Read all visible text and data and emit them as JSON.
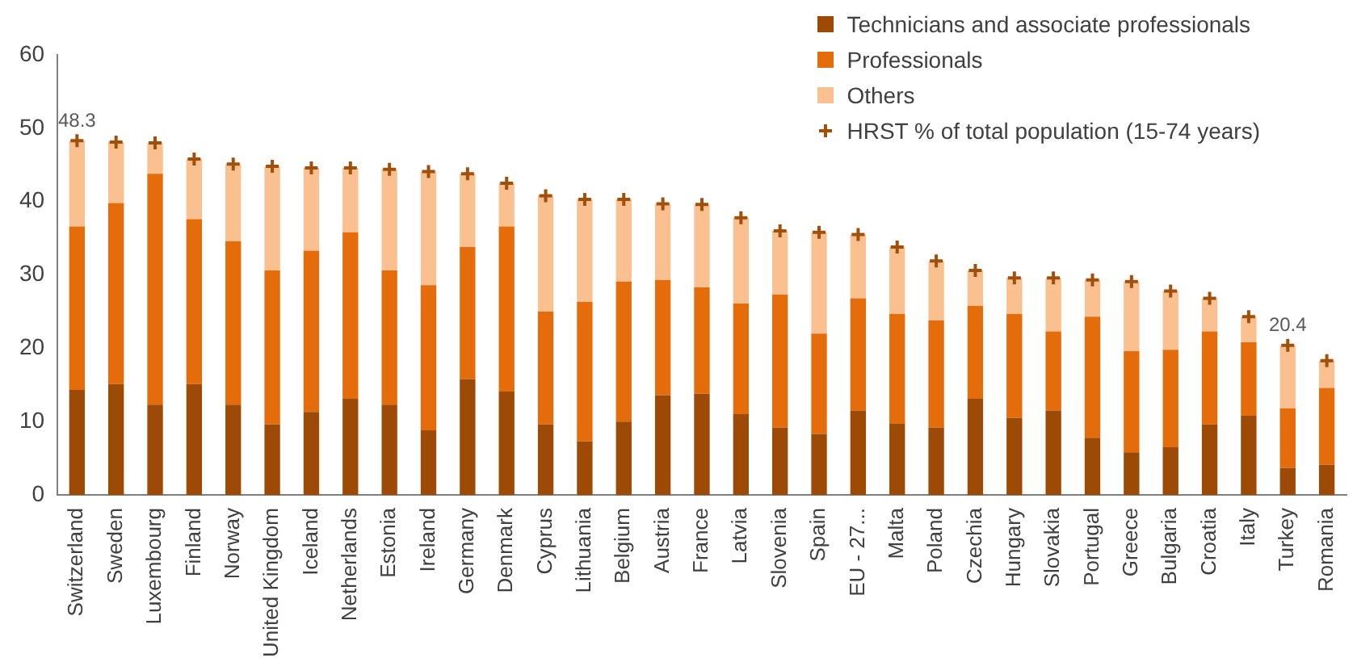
{
  "chart_data": {
    "type": "bar",
    "stacked": true,
    "legend": "top right",
    "grid": false,
    "categories": [
      "Switzerland",
      "Sweden",
      "Luxembourg",
      "Finland",
      "Norway",
      "United Kingdom",
      "Iceland",
      "Netherlands",
      "Estonia",
      "Ireland",
      "Germany",
      "Denmark",
      "Cyprus",
      "Lithuania",
      "Belgium",
      "Austria",
      "France",
      "Latvia",
      "Slovenia",
      "Spain",
      "EU - 27...",
      "Malta",
      "Poland",
      "Czechia",
      "Hungary",
      "Slovakia",
      "Portugal",
      "Greece",
      "Bulgaria",
      "Croatia",
      "Italy",
      "Turkey",
      "Romania"
    ],
    "ylim": [
      0,
      60
    ],
    "yticks": [
      0,
      10,
      20,
      30,
      40,
      50,
      60
    ],
    "series": [
      {
        "name": "Technicians and associate professionals",
        "color": "#9c4a06",
        "values": [
          14.3,
          15.1,
          12.3,
          15.1,
          12.3,
          9.6,
          11.3,
          13.1,
          12.3,
          8.8,
          15.8,
          14.1,
          9.6,
          7.3,
          10.0,
          13.6,
          13.8,
          11.0,
          9.2,
          8.3,
          11.5,
          9.7,
          9.2,
          13.1,
          10.5,
          11.5,
          7.8,
          5.8,
          6.5,
          9.6,
          10.8,
          3.7,
          4.1
        ]
      },
      {
        "name": "Professionals",
        "color": "#e46c0a",
        "values": [
          22.3,
          24.7,
          31.5,
          22.5,
          22.3,
          21.0,
          22.0,
          22.7,
          18.3,
          19.8,
          18.0,
          22.5,
          15.4,
          19.0,
          19.1,
          15.7,
          14.5,
          15.1,
          18.1,
          13.7,
          15.3,
          15.0,
          14.6,
          12.7,
          14.2,
          10.8,
          16.5,
          13.8,
          13.3,
          12.7,
          10.0,
          8.1,
          10.5
        ]
      },
      {
        "name": "Others",
        "color": "#fac090",
        "values": [
          11.7,
          8.3,
          4.2,
          8.2,
          10.5,
          14.2,
          11.3,
          8.8,
          13.8,
          15.5,
          10.0,
          5.9,
          15.8,
          14.0,
          11.2,
          10.4,
          11.3,
          11.7,
          8.7,
          13.8,
          8.7,
          9.1,
          8.1,
          4.8,
          4.9,
          7.3,
          5.0,
          9.5,
          8.0,
          4.5,
          3.5,
          8.6,
          3.7
        ]
      },
      {
        "name": "HRST % of total population (15-74 years)",
        "type": "scatter",
        "marker": "cross",
        "color": "#a0500a",
        "values": [
          48.3,
          48.1,
          48.0,
          45.8,
          45.1,
          44.8,
          44.6,
          44.6,
          44.4,
          44.1,
          43.8,
          42.5,
          40.8,
          40.3,
          40.3,
          39.7,
          39.6,
          37.8,
          36.0,
          35.8,
          35.5,
          33.8,
          31.9,
          30.6,
          29.6,
          29.6,
          29.3,
          29.1,
          27.8,
          26.8,
          24.3,
          20.4,
          18.3
        ],
        "value_labels": [
          "48.3",
          null,
          null,
          null,
          null,
          null,
          null,
          null,
          null,
          null,
          null,
          null,
          null,
          null,
          null,
          null,
          null,
          null,
          null,
          null,
          null,
          null,
          null,
          null,
          null,
          null,
          null,
          null,
          null,
          null,
          null,
          "20.4",
          null
        ]
      }
    ]
  }
}
